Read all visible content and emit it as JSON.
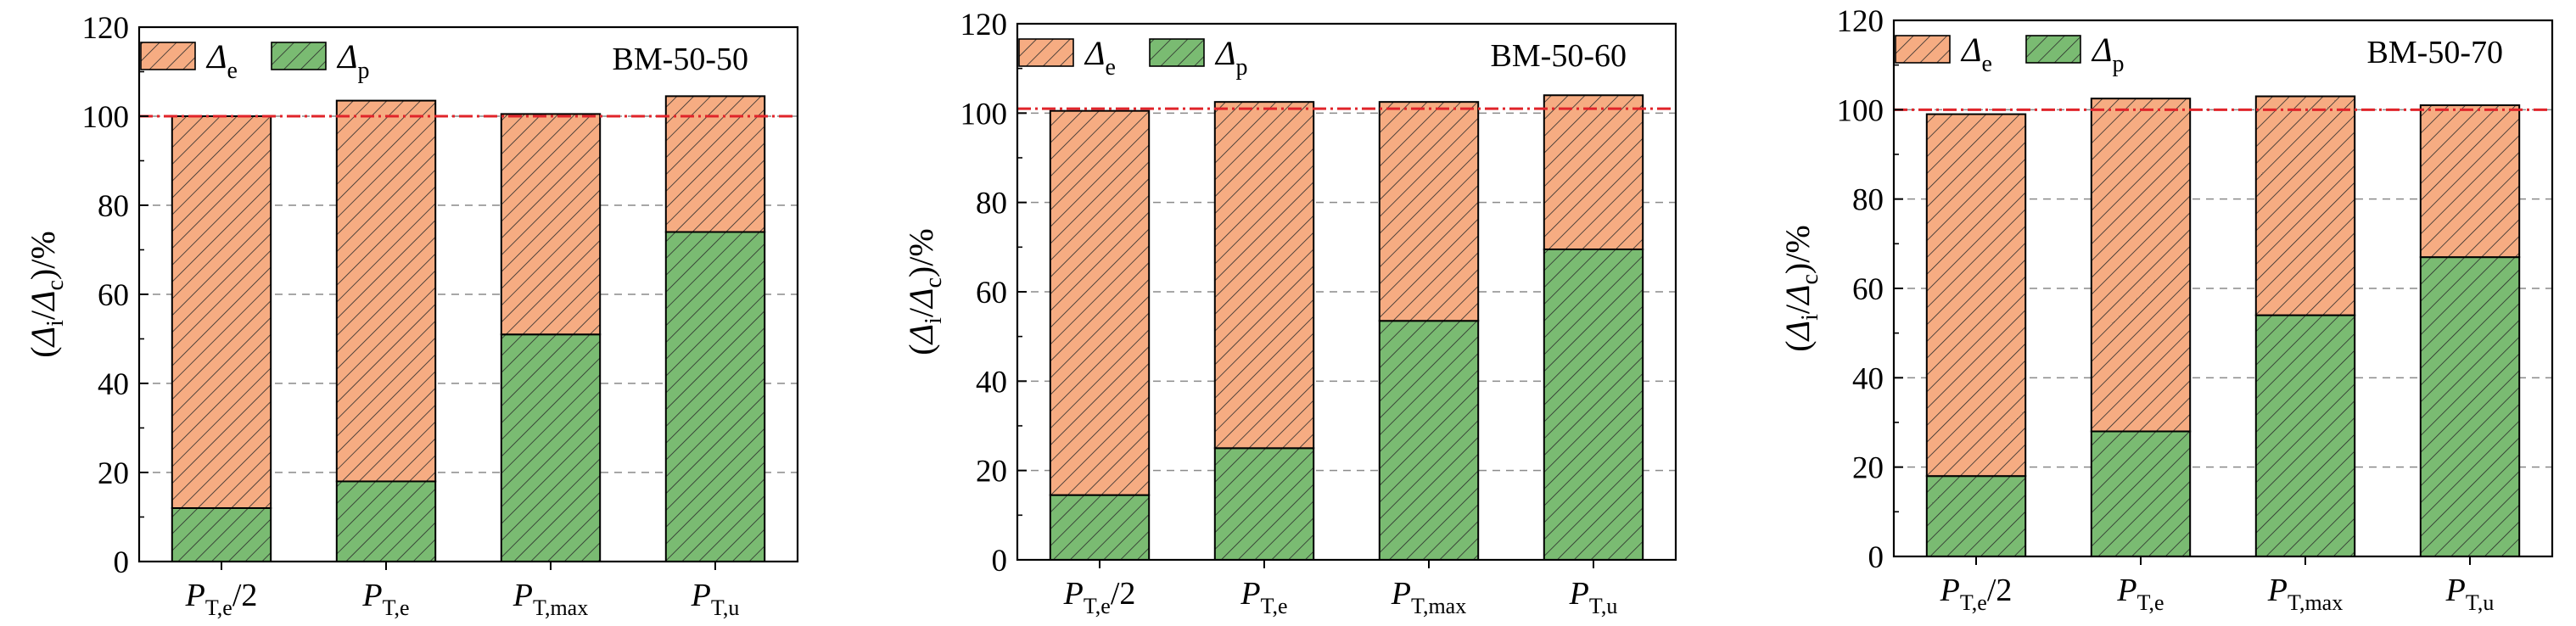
{
  "colors": {
    "elastic_fill": "#f6ac82",
    "plastic_fill": "#7abb72",
    "hatch": "#2b2b2b",
    "reference_line": "#e0242a",
    "grid": "#8a8a8a",
    "axis": "#000000"
  },
  "legend": {
    "elastic": {
      "symbol": "Δ",
      "subscript": "e"
    },
    "plastic": {
      "symbol": "Δ",
      "subscript": "p"
    }
  },
  "ylabel": {
    "prefix": "(",
    "delta_i": "Δ",
    "sub_i": "i",
    "slash": "/",
    "delta_c": "Δ",
    "sub_c": "c",
    "suffix": ")/%"
  },
  "categories": [
    {
      "main": "P",
      "sub": "T,e",
      "suffix": "/2"
    },
    {
      "main": "P",
      "sub": "T,e",
      "suffix": ""
    },
    {
      "main": "P",
      "sub": "T,max",
      "suffix": ""
    },
    {
      "main": "P",
      "sub": "T,u",
      "suffix": ""
    }
  ],
  "chart_data": [
    {
      "type": "bar",
      "stacked": true,
      "title": "BM-50-50",
      "reference_line": 100,
      "ylim": [
        0,
        120
      ],
      "yticks": [
        0,
        20,
        40,
        60,
        80,
        100,
        120
      ],
      "grid": "horizontal dashed",
      "legend_position": "top-left",
      "series": [
        {
          "name": "Δe",
          "values": [
            88,
            85.5,
            49.5,
            30.5
          ]
        },
        {
          "name": "Δp",
          "values": [
            12,
            18,
            51,
            74
          ]
        }
      ],
      "totals": [
        100,
        103.5,
        100.5,
        104.5
      ]
    },
    {
      "type": "bar",
      "stacked": true,
      "title": "BM-50-60",
      "reference_line": 101,
      "ylim": [
        0,
        120
      ],
      "yticks": [
        0,
        20,
        40,
        60,
        80,
        100,
        120
      ],
      "grid": "horizontal dashed",
      "legend_position": "top-left",
      "series": [
        {
          "name": "Δe",
          "values": [
            86,
            77.5,
            49,
            34.5
          ]
        },
        {
          "name": "Δp",
          "values": [
            14.5,
            25,
            53.5,
            69.5
          ]
        }
      ],
      "totals": [
        100.5,
        102.5,
        102.5,
        104
      ]
    },
    {
      "type": "bar",
      "stacked": true,
      "title": "BM-50-70",
      "reference_line": 100,
      "ylim": [
        0,
        120
      ],
      "yticks": [
        0,
        20,
        40,
        60,
        80,
        100,
        120
      ],
      "grid": "horizontal dashed",
      "legend_position": "top-left",
      "series": [
        {
          "name": "Δe",
          "values": [
            81,
            74.5,
            49,
            34
          ]
        },
        {
          "name": "Δp",
          "values": [
            18,
            28,
            54,
            67
          ]
        }
      ],
      "totals": [
        99,
        102.5,
        103,
        101
      ]
    }
  ]
}
